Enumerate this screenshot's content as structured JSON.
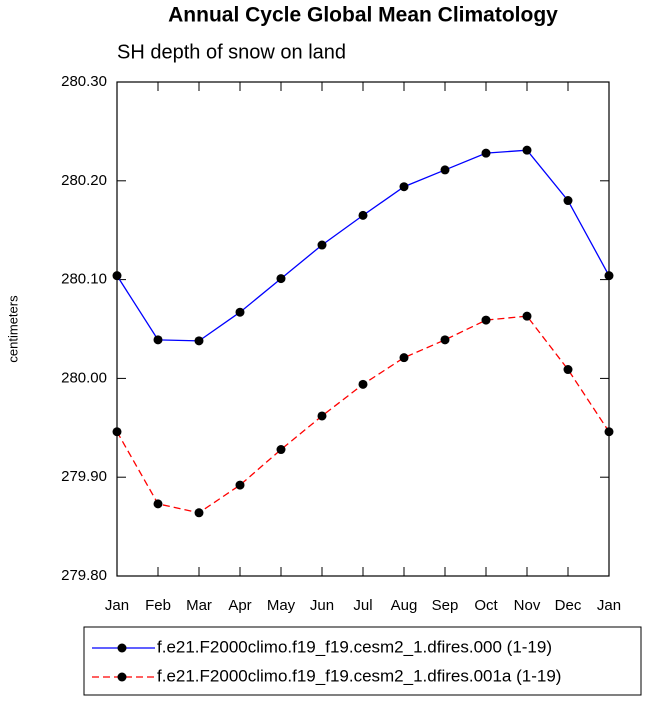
{
  "chart_data": {
    "type": "line",
    "title": "Annual Cycle Global Mean Climatology",
    "subtitle": "SH depth of snow on land",
    "y_label": "centimeters",
    "categories": [
      "Jan",
      "Feb",
      "Mar",
      "Apr",
      "May",
      "Jun",
      "Jul",
      "Aug",
      "Sep",
      "Oct",
      "Nov",
      "Dec",
      "Jan"
    ],
    "ylim": [
      279.8,
      280.3
    ],
    "yticks": [
      {
        "value": 279.8,
        "label": "279.80"
      },
      {
        "value": 279.9,
        "label": "279.90"
      },
      {
        "value": 280.0,
        "label": "280.00"
      },
      {
        "value": 280.1,
        "label": "280.10"
      },
      {
        "value": 280.2,
        "label": "280.20"
      },
      {
        "value": 280.3,
        "label": "280.30"
      }
    ],
    "series": [
      {
        "name": "f.e21.F2000climo.f19_f19.cesm2_1.dfires.000 (1-19)",
        "color": "#0000ff",
        "dash": false,
        "values": [
          280.104,
          280.039,
          280.038,
          280.067,
          280.101,
          280.135,
          280.165,
          280.194,
          280.211,
          280.228,
          280.231,
          280.18,
          280.104
        ]
      },
      {
        "name": "f.e21.F2000climo.f19_f19.cesm2_1.dfires.001a (1-19)",
        "color": "#ff0000",
        "dash": true,
        "values": [
          279.946,
          279.873,
          279.864,
          279.892,
          279.928,
          279.962,
          279.994,
          280.021,
          280.039,
          280.059,
          280.063,
          280.009,
          279.946
        ]
      }
    ]
  }
}
